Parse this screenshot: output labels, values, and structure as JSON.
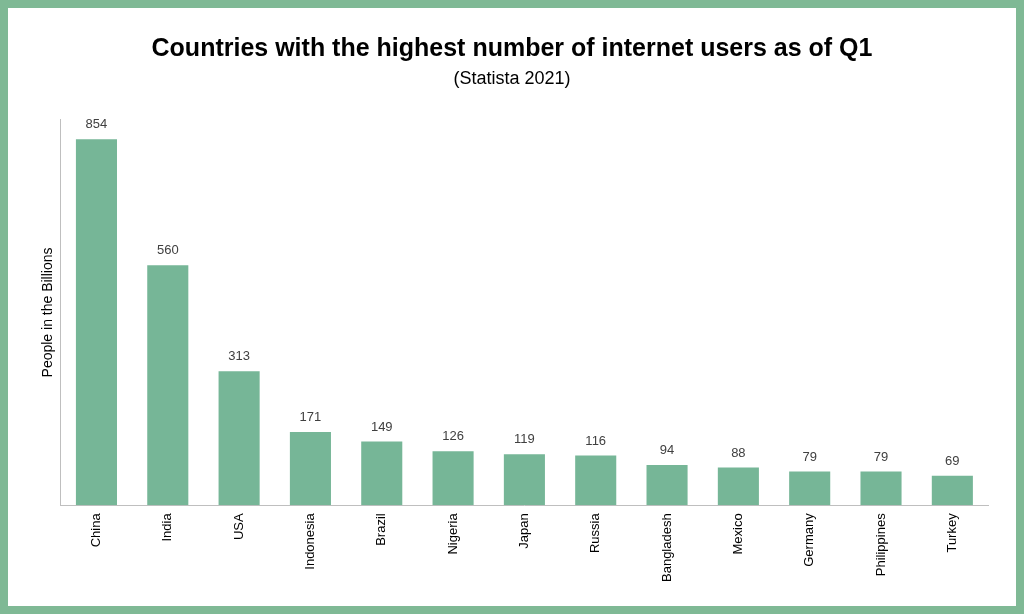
{
  "chart_data": {
    "type": "bar",
    "title": "Countries with the highest number of internet users as of Q1",
    "subtitle": "(Statista 2021)",
    "y_label": "People in the Billions",
    "categories": [
      "China",
      "India",
      "USA",
      "Indonesia",
      "Brazil",
      "Nigeria",
      "Japan",
      "Russia",
      "Bangladesh",
      "Mexico",
      "Germany",
      "Philippines",
      "Turkey"
    ],
    "values": [
      854,
      560,
      313,
      171,
      149,
      126,
      119,
      116,
      94,
      88,
      79,
      79,
      69
    ],
    "color": "#76b697",
    "ylim": [
      0,
      900
    ],
    "grid": false,
    "data_labels": true,
    "tick_labels": "x"
  }
}
